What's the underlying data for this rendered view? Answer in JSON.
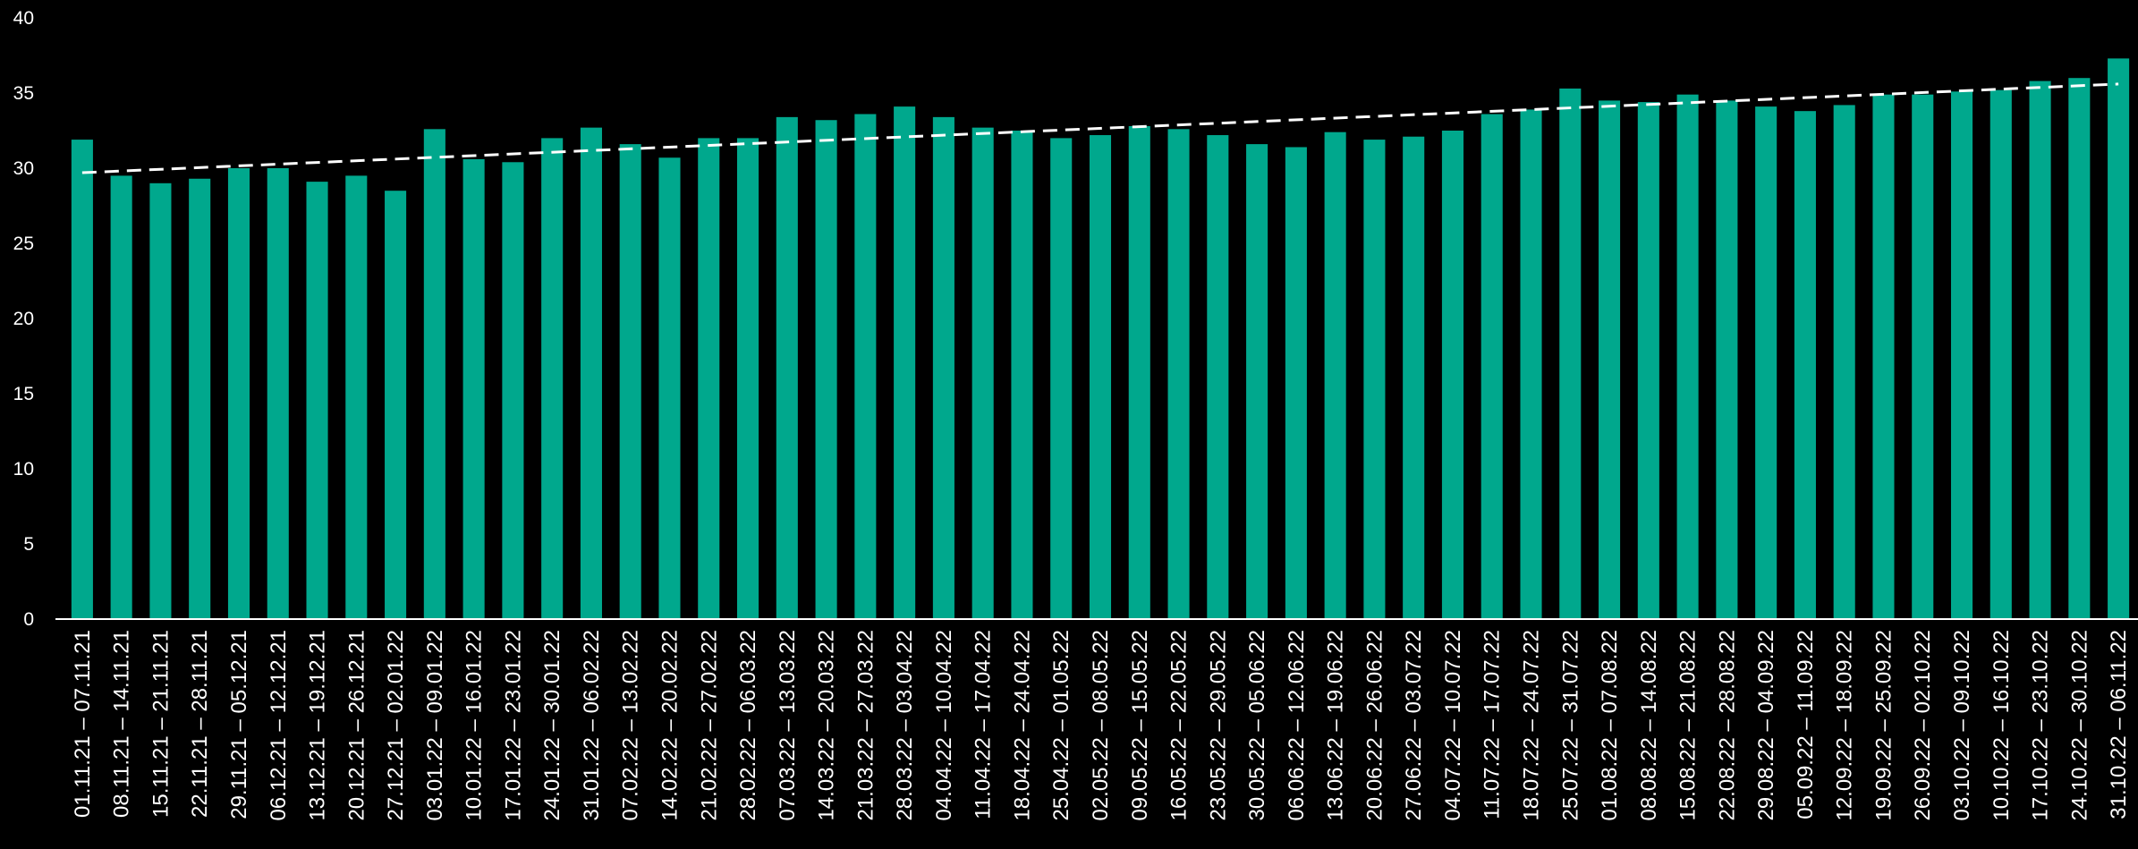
{
  "chart_data": {
    "type": "bar",
    "title": "",
    "xlabel": "",
    "ylabel": "",
    "ylim": [
      0,
      40
    ],
    "yticks": [
      0,
      5,
      10,
      15,
      20,
      25,
      30,
      35,
      40
    ],
    "grid": false,
    "legend": "none",
    "colors": {
      "bar": "#00a88d",
      "trendline": "#ffffff",
      "background": "#000000",
      "text": "#ffffff"
    },
    "trendline": {
      "style": "dashed",
      "start": 29.7,
      "end": 35.6
    },
    "categories": [
      "01.11.21 – 07.11.21",
      "08.11.21 – 14.11.21",
      "15.11.21 – 21.11.21",
      "22.11.21 – 28.11.21",
      "29.11.21 – 05.12.21",
      "06.12.21 – 12.12.21",
      "13.12.21 – 19.12.21",
      "20.12.21 – 26.12.21",
      "27.12.21 – 02.01.22",
      "03.01.22 – 09.01.22",
      "10.01.22 – 16.01.22",
      "17.01.22 – 23.01.22",
      "24.01.22 – 30.01.22",
      "31.01.22 – 06.02.22",
      "07.02.22 – 13.02.22",
      "14.02.22 – 20.02.22",
      "21.02.22 – 27.02.22",
      "28.02.22 – 06.03.22",
      "07.03.22 – 13.03.22",
      "14.03.22 – 20.03.22",
      "21.03.22 – 27.03.22",
      "28.03.22 – 03.04.22",
      "04.04.22 – 10.04.22",
      "11.04.22 – 17.04.22",
      "18.04.22 – 24.04.22",
      "25.04.22 – 01.05.22",
      "02.05.22 – 08.05.22",
      "09.05.22 – 15.05.22",
      "16.05.22 – 22.05.22",
      "23.05.22 – 29.05.22",
      "30.05.22 – 05.06.22",
      "06.06.22 – 12.06.22",
      "13.06.22 – 19.06.22",
      "20.06.22 – 26.06.22",
      "27.06.22 – 03.07.22",
      "04.07.22 – 10.07.22",
      "11.07.22 – 17.07.22",
      "18.07.22 – 24.07.22",
      "25.07.22 – 31.07.22",
      "01.08.22 – 07.08.22",
      "08.08.22 – 14.08.22",
      "15.08.22 – 21.08.22",
      "22.08.22 – 28.08.22",
      "29.08.22 – 04.09.22",
      "05.09.22 – 11.09.22",
      "12.09.22 – 18.09.22",
      "19.09.22 – 25.09.22",
      "26.09.22 – 02.10.22",
      "03.10.22 – 09.10.22",
      "10.10.22 – 16.10.22",
      "17.10.22 – 23.10.22",
      "24.10.22 – 30.10.22",
      "31.10.22 – 06.11.22"
    ],
    "values": [
      31.9,
      29.5,
      29.0,
      29.3,
      30.0,
      30.0,
      29.1,
      29.5,
      28.5,
      32.6,
      30.6,
      30.4,
      32.0,
      32.7,
      31.6,
      30.7,
      32.0,
      32.0,
      33.4,
      33.2,
      33.6,
      34.1,
      33.4,
      32.7,
      32.5,
      32.0,
      32.2,
      32.8,
      32.6,
      32.2,
      31.6,
      31.4,
      32.4,
      31.9,
      32.1,
      32.5,
      33.6,
      33.9,
      35.3,
      34.5,
      34.4,
      34.9,
      34.5,
      34.1,
      33.8,
      34.2,
      34.9,
      34.9,
      35.1,
      35.2,
      35.8,
      36.0,
      37.3
    ]
  }
}
